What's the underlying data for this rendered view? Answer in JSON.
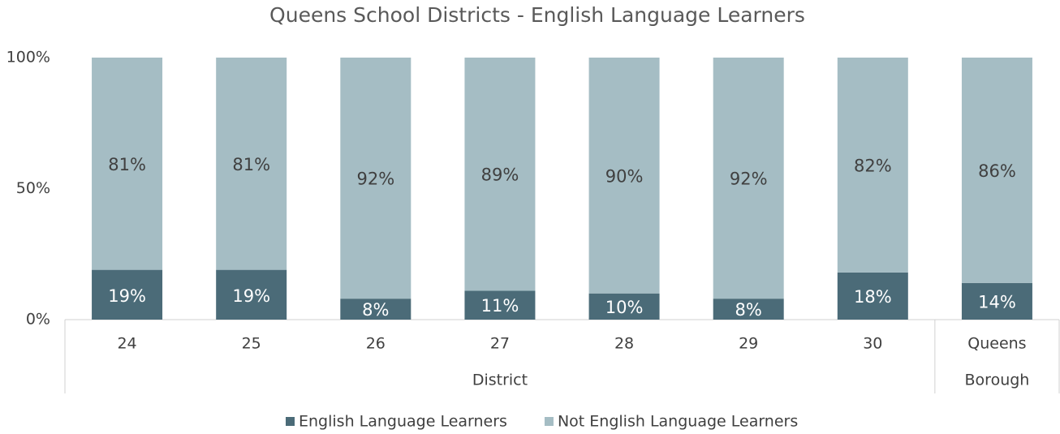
{
  "chart_data": {
    "type": "stacked_bar",
    "title": "Queens School Districts - English Language Learners",
    "category_groups": [
      {
        "name": "District",
        "categories": [
          "24",
          "25",
          "26",
          "27",
          "28",
          "29",
          "30"
        ]
      },
      {
        "name": "Borough",
        "categories": [
          "Queens"
        ]
      }
    ],
    "series": [
      {
        "name": "English Language Learners",
        "color": "#4b6b78",
        "values": [
          19,
          19,
          8,
          11,
          10,
          8,
          18,
          14
        ],
        "value_labels": [
          "19%",
          "19%",
          "8%",
          "11%",
          "10%",
          "8%",
          "18%",
          "14%"
        ]
      },
      {
        "name": "Not English Language Learners",
        "color": "#a5bdc4",
        "values": [
          81,
          81,
          92,
          89,
          90,
          92,
          82,
          86
        ],
        "value_labels": [
          "81%",
          "81%",
          "92%",
          "89%",
          "90%",
          "92%",
          "82%",
          "86%"
        ]
      }
    ],
    "ylim": [
      0,
      100
    ],
    "yticks": [
      {
        "value": 0,
        "label": "0%"
      },
      {
        "value": 50,
        "label": "50%"
      },
      {
        "value": 100,
        "label": "100%"
      }
    ],
    "legend": "bottom"
  }
}
